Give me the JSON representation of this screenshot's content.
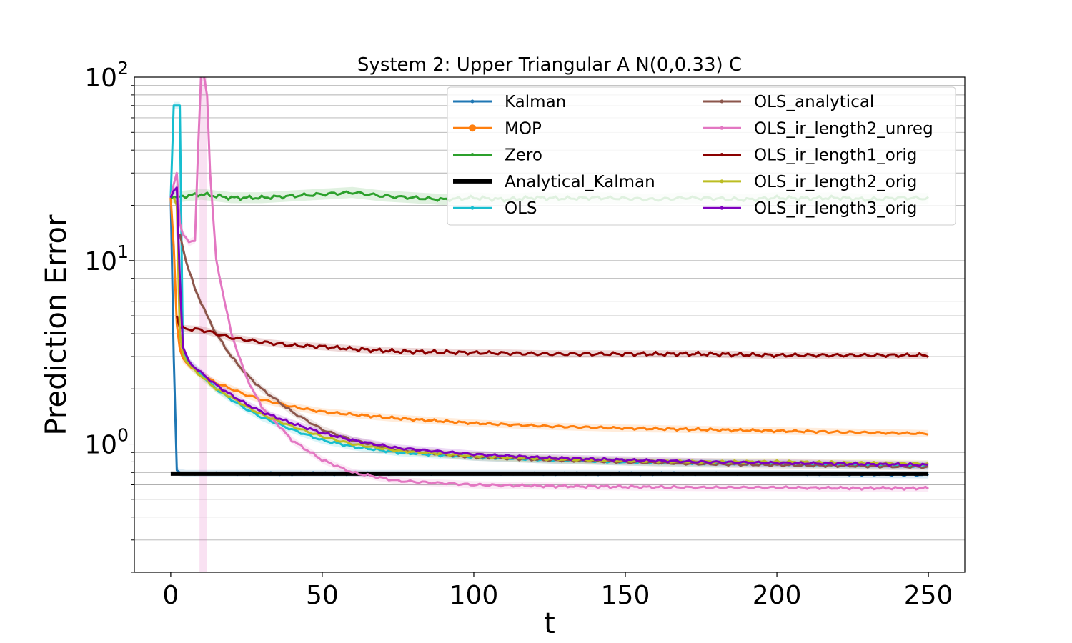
{
  "chart_data": {
    "type": "line",
    "title": "System 2: Upper Triangular A N(0,0.33) C",
    "xlabel": "t",
    "ylabel": "Prediction Error",
    "xlim": [
      -12,
      262
    ],
    "ylim": [
      0.2,
      100
    ],
    "yscale": "log",
    "grid": "y-minor",
    "legend_position": "top-right",
    "legend_columns": 2,
    "x_ticks": [
      0,
      50,
      100,
      150,
      200,
      250
    ],
    "x_tick_labels": [
      "0",
      "50",
      "100",
      "150",
      "200",
      "250"
    ],
    "y_ticks": [
      1,
      10,
      100
    ],
    "y_tick_labels": [
      {
        "base": "10",
        "exp": "0"
      },
      {
        "base": "10",
        "exp": "1"
      },
      {
        "base": "10",
        "exp": "2"
      }
    ],
    "series": [
      {
        "name": "Kalman",
        "color": "#1f77b4",
        "marker": "small-dot",
        "points": [
          [
            0,
            22
          ],
          [
            1,
            3
          ],
          [
            2,
            0.72
          ],
          [
            3,
            0.7
          ],
          [
            5,
            0.69
          ],
          [
            10,
            0.69
          ],
          [
            25,
            0.69
          ],
          [
            50,
            0.69
          ],
          [
            100,
            0.69
          ],
          [
            150,
            0.69
          ],
          [
            200,
            0.69
          ],
          [
            250,
            0.68
          ]
        ]
      },
      {
        "name": "MOP",
        "color": "#ff7f0e",
        "marker": "dot",
        "points": [
          [
            0,
            22
          ],
          [
            1,
            12
          ],
          [
            2,
            4.5
          ],
          [
            3,
            3.3
          ],
          [
            4,
            2.9
          ],
          [
            6,
            2.7
          ],
          [
            10,
            2.4
          ],
          [
            15,
            2.15
          ],
          [
            20,
            2.0
          ],
          [
            25,
            1.85
          ],
          [
            30,
            1.75
          ],
          [
            40,
            1.6
          ],
          [
            50,
            1.5
          ],
          [
            60,
            1.45
          ],
          [
            75,
            1.38
          ],
          [
            100,
            1.3
          ],
          [
            125,
            1.25
          ],
          [
            150,
            1.22
          ],
          [
            175,
            1.2
          ],
          [
            200,
            1.18
          ],
          [
            225,
            1.16
          ],
          [
            250,
            1.14
          ]
        ]
      },
      {
        "name": "Zero",
        "color": "#2ca02c",
        "marker": "small-dot",
        "points": [
          [
            0,
            22
          ],
          [
            5,
            22.5
          ],
          [
            10,
            23
          ],
          [
            20,
            22
          ],
          [
            30,
            22
          ],
          [
            40,
            22.5
          ],
          [
            50,
            23
          ],
          [
            60,
            23.5
          ],
          [
            70,
            22.5
          ],
          [
            80,
            22
          ],
          [
            90,
            21.5
          ],
          [
            100,
            22
          ],
          [
            110,
            21.5
          ],
          [
            120,
            22
          ],
          [
            130,
            21.8
          ],
          [
            140,
            22
          ],
          [
            150,
            21.8
          ],
          [
            160,
            21.5
          ],
          [
            170,
            22
          ],
          [
            180,
            21.8
          ],
          [
            190,
            21.5
          ],
          [
            200,
            22
          ],
          [
            210,
            21.8
          ],
          [
            220,
            22
          ],
          [
            230,
            21.5
          ],
          [
            240,
            22
          ],
          [
            250,
            21.8
          ]
        ]
      },
      {
        "name": "Analytical_Kalman",
        "color": "#000000",
        "marker": "none",
        "points": [
          [
            0,
            0.69
          ],
          [
            250,
            0.69
          ]
        ]
      },
      {
        "name": "OLS",
        "color": "#17becf",
        "marker": "small-dot",
        "points": [
          [
            0,
            22
          ],
          [
            1,
            70
          ],
          [
            2,
            70
          ],
          [
            3,
            70
          ],
          [
            4,
            3.2
          ],
          [
            6,
            2.8
          ],
          [
            10,
            2.4
          ],
          [
            15,
            2.0
          ],
          [
            20,
            1.75
          ],
          [
            25,
            1.55
          ],
          [
            30,
            1.4
          ],
          [
            40,
            1.2
          ],
          [
            50,
            1.05
          ],
          [
            60,
            0.97
          ],
          [
            75,
            0.9
          ],
          [
            100,
            0.85
          ],
          [
            125,
            0.82
          ],
          [
            150,
            0.8
          ],
          [
            175,
            0.79
          ],
          [
            200,
            0.78
          ],
          [
            225,
            0.77
          ],
          [
            250,
            0.76
          ]
        ]
      },
      {
        "name": "OLS_analytical",
        "color": "#8c564b",
        "marker": "small-dot",
        "points": [
          [
            3,
            14
          ],
          [
            5,
            10
          ],
          [
            8,
            7
          ],
          [
            12,
            5
          ],
          [
            15,
            4
          ],
          [
            20,
            3
          ],
          [
            25,
            2.4
          ],
          [
            30,
            2
          ],
          [
            40,
            1.5
          ],
          [
            50,
            1.2
          ],
          [
            60,
            1.05
          ],
          [
            75,
            0.93
          ],
          [
            100,
            0.85
          ],
          [
            125,
            0.82
          ],
          [
            150,
            0.8
          ],
          [
            175,
            0.78
          ],
          [
            200,
            0.77
          ],
          [
            225,
            0.76
          ],
          [
            250,
            0.75
          ]
        ]
      },
      {
        "name": "OLS_ir_length2_unreg",
        "color": "#e377c2",
        "marker": "small-dot",
        "points": [
          [
            0,
            22
          ],
          [
            1,
            26
          ],
          [
            2,
            30
          ],
          [
            3,
            16
          ],
          [
            4,
            14
          ],
          [
            6,
            12.5
          ],
          [
            8,
            13
          ],
          [
            9,
            40
          ],
          [
            10,
            100
          ],
          [
            11,
            100
          ],
          [
            12,
            80
          ],
          [
            13,
            30
          ],
          [
            15,
            10
          ],
          [
            20,
            4
          ],
          [
            25,
            2.3
          ],
          [
            30,
            1.6
          ],
          [
            40,
            1.05
          ],
          [
            50,
            0.82
          ],
          [
            60,
            0.7
          ],
          [
            75,
            0.63
          ],
          [
            100,
            0.6
          ],
          [
            125,
            0.59
          ],
          [
            150,
            0.585
          ],
          [
            175,
            0.58
          ],
          [
            200,
            0.58
          ],
          [
            225,
            0.575
          ],
          [
            250,
            0.575
          ]
        ]
      },
      {
        "name": "OLS_ir_length1_orig",
        "color": "#8b0000",
        "marker": "small-dot",
        "points": [
          [
            2,
            5
          ],
          [
            3,
            4.3
          ],
          [
            5,
            4.25
          ],
          [
            10,
            4.2
          ],
          [
            15,
            4.0
          ],
          [
            20,
            3.8
          ],
          [
            30,
            3.6
          ],
          [
            40,
            3.45
          ],
          [
            50,
            3.4
          ],
          [
            60,
            3.3
          ],
          [
            75,
            3.2
          ],
          [
            100,
            3.15
          ],
          [
            125,
            3.1
          ],
          [
            150,
            3.1
          ],
          [
            175,
            3.1
          ],
          [
            200,
            3.05
          ],
          [
            225,
            3.05
          ],
          [
            250,
            3.05
          ]
        ]
      },
      {
        "name": "OLS_ir_length2_orig",
        "color": "#bcbd22",
        "marker": "small-dot",
        "points": [
          [
            1,
            22
          ],
          [
            2,
            20
          ],
          [
            3,
            4.0
          ],
          [
            4,
            3.1
          ],
          [
            6,
            2.7
          ],
          [
            10,
            2.35
          ],
          [
            15,
            2.0
          ],
          [
            20,
            1.8
          ],
          [
            25,
            1.6
          ],
          [
            30,
            1.45
          ],
          [
            40,
            1.25
          ],
          [
            50,
            1.1
          ],
          [
            60,
            1.0
          ],
          [
            75,
            0.92
          ],
          [
            100,
            0.86
          ],
          [
            125,
            0.83
          ],
          [
            150,
            0.81
          ],
          [
            175,
            0.8
          ],
          [
            200,
            0.8
          ],
          [
            225,
            0.79
          ],
          [
            250,
            0.78
          ]
        ]
      },
      {
        "name": "OLS_ir_length3_orig",
        "color": "#7f00bf",
        "marker": "small-dot",
        "points": [
          [
            0,
            22
          ],
          [
            1,
            24
          ],
          [
            2,
            25
          ],
          [
            3,
            8
          ],
          [
            4,
            3.4
          ],
          [
            6,
            2.8
          ],
          [
            10,
            2.45
          ],
          [
            15,
            2.1
          ],
          [
            20,
            1.85
          ],
          [
            25,
            1.65
          ],
          [
            30,
            1.5
          ],
          [
            40,
            1.3
          ],
          [
            50,
            1.15
          ],
          [
            60,
            1.05
          ],
          [
            75,
            0.95
          ],
          [
            100,
            0.88
          ],
          [
            125,
            0.84
          ],
          [
            150,
            0.82
          ],
          [
            175,
            0.8
          ],
          [
            200,
            0.79
          ],
          [
            225,
            0.78
          ],
          [
            250,
            0.77
          ]
        ]
      }
    ]
  }
}
